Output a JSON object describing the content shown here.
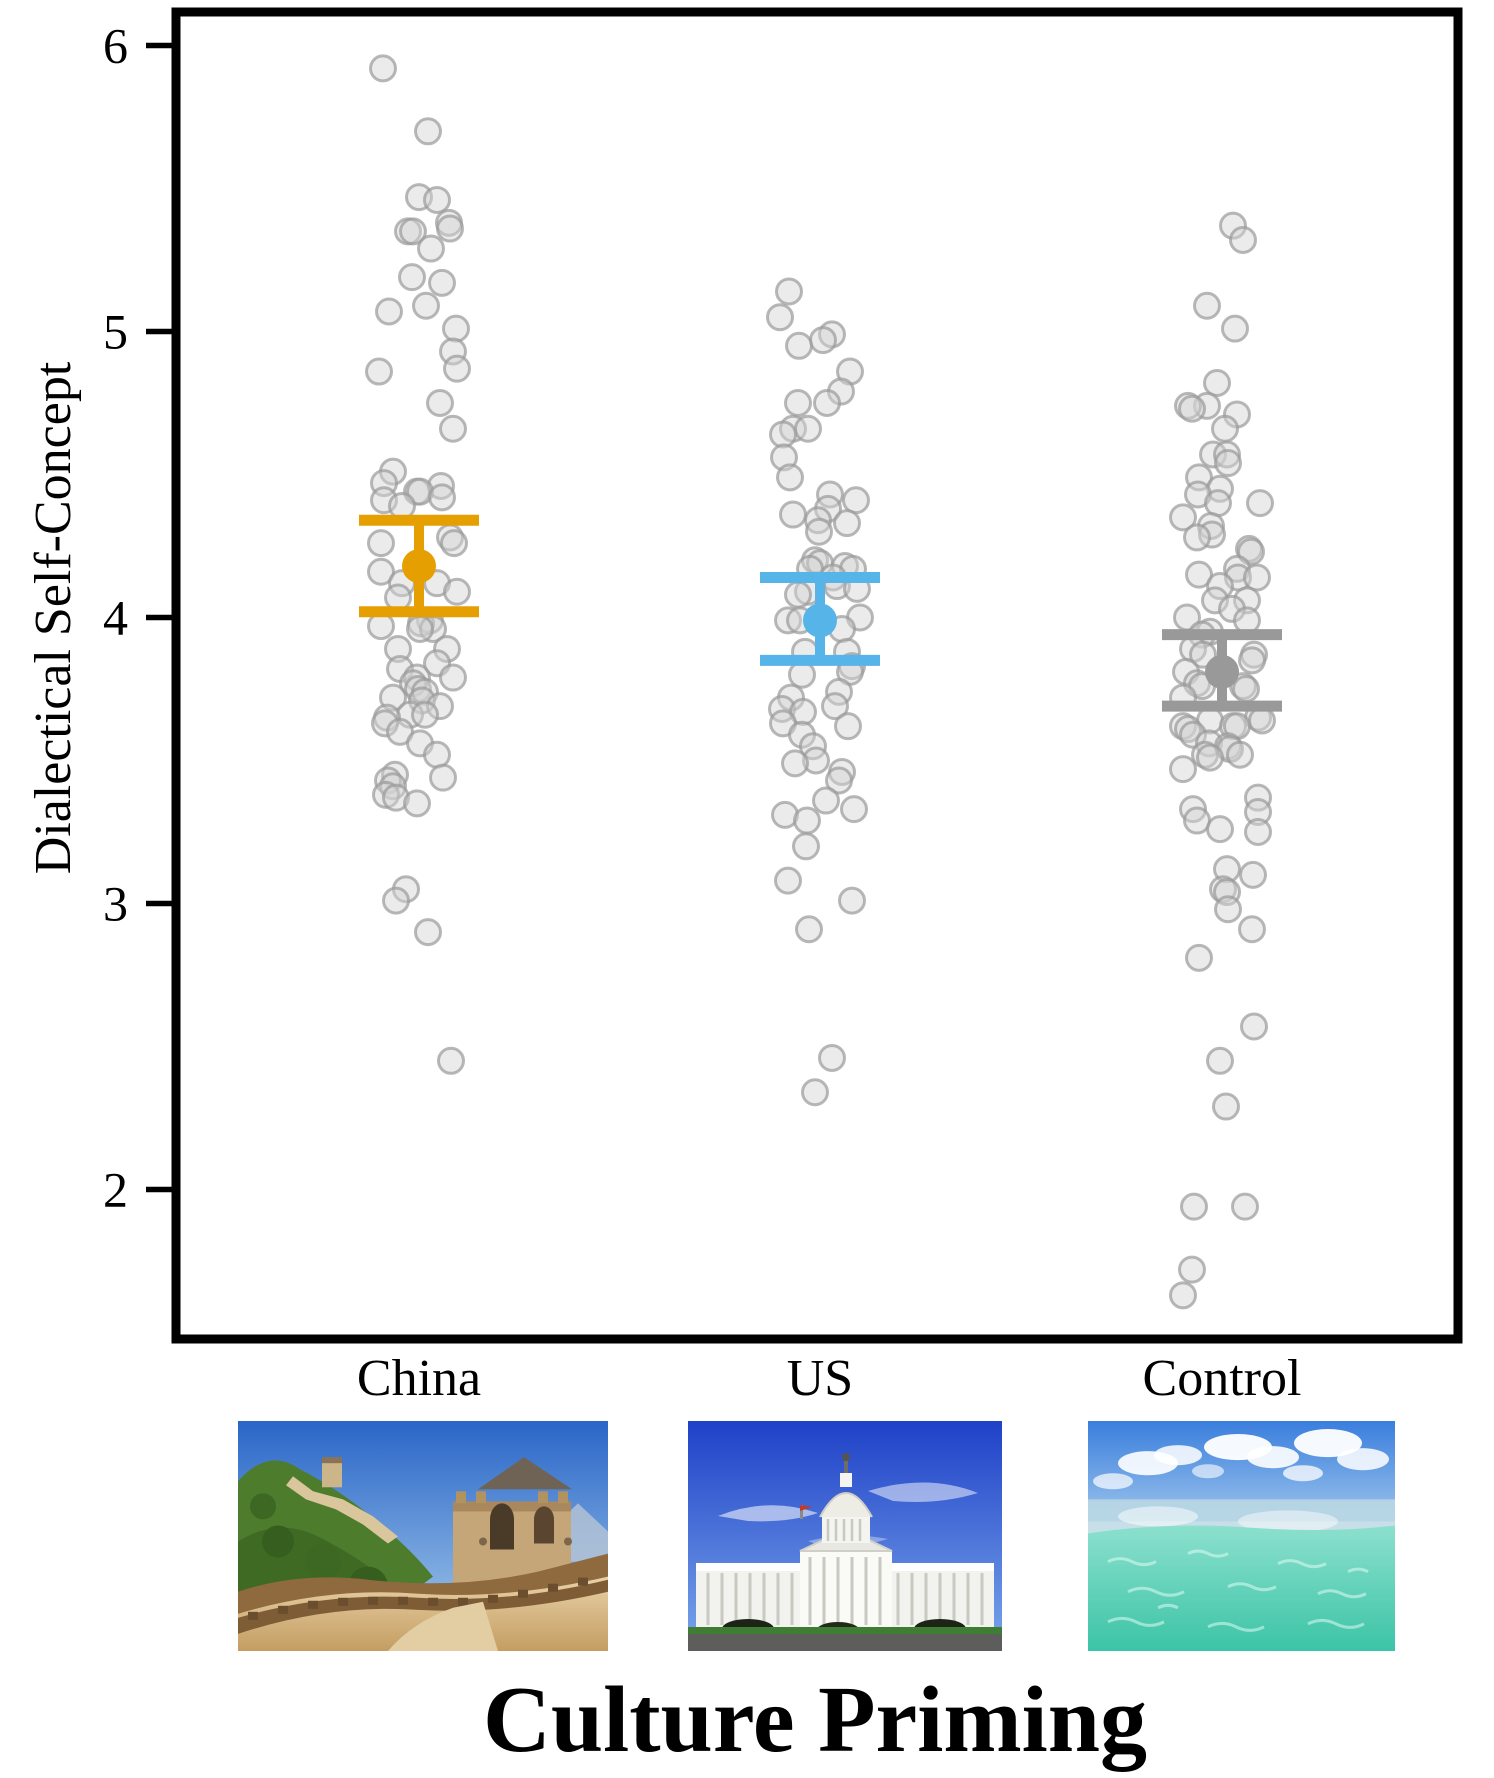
{
  "chart_data": {
    "type": "scatter",
    "subtype": "jittered-strip-with-mean-ci",
    "title": "",
    "xlabel": "Culture Priming",
    "ylabel": "Dialectical Self-Concept",
    "ylim": [
      1.45,
      6.15
    ],
    "yticks": [
      2,
      3,
      4,
      5,
      6
    ],
    "grid": false,
    "legend": null,
    "point_style": {
      "fill": "#d2d2d2",
      "fill_opacity": 0.45,
      "stroke": "#9a9a9a",
      "stroke_opacity": 0.7
    },
    "groups": [
      {
        "label": "China",
        "color": "#E69F00",
        "mean": 4.18,
        "ci_low": 4.02,
        "ci_high": 4.34,
        "image": "great-wall-of-china",
        "points": [
          [
            5.92,
            -36
          ],
          [
            5.7,
            9
          ],
          [
            5.47,
            0
          ],
          [
            5.46,
            18
          ],
          [
            5.38,
            30
          ],
          [
            5.36,
            31
          ],
          [
            5.35,
            -11
          ],
          [
            5.35,
            -6
          ],
          [
            5.29,
            12
          ],
          [
            5.19,
            -7
          ],
          [
            5.17,
            23
          ],
          [
            5.09,
            7
          ],
          [
            5.07,
            -30
          ],
          [
            5.01,
            37
          ],
          [
            4.93,
            34
          ],
          [
            4.87,
            38
          ],
          [
            4.86,
            -40
          ],
          [
            4.75,
            21
          ],
          [
            4.66,
            34
          ],
          [
            4.51,
            -26
          ],
          [
            4.47,
            -35
          ],
          [
            4.46,
            22
          ],
          [
            4.44,
            -2
          ],
          [
            4.44,
            1
          ],
          [
            4.42,
            23
          ],
          [
            4.41,
            -35
          ],
          [
            4.39,
            -17
          ],
          [
            4.28,
            31
          ],
          [
            4.26,
            -38
          ],
          [
            4.26,
            35
          ],
          [
            4.16,
            -38
          ],
          [
            4.12,
            18
          ],
          [
            4.12,
            -17
          ],
          [
            4.09,
            38
          ],
          [
            4.07,
            -21
          ],
          [
            3.99,
            11
          ],
          [
            3.98,
            2
          ],
          [
            3.97,
            -38
          ],
          [
            3.96,
            14
          ],
          [
            3.96,
            1
          ],
          [
            3.89,
            -21
          ],
          [
            3.89,
            28
          ],
          [
            3.84,
            18
          ],
          [
            3.82,
            -19
          ],
          [
            3.79,
            -2
          ],
          [
            3.79,
            34
          ],
          [
            3.77,
            -6
          ],
          [
            3.75,
            -1
          ],
          [
            3.74,
            6
          ],
          [
            3.72,
            -26
          ],
          [
            3.71,
            3
          ],
          [
            3.69,
            21
          ],
          [
            3.66,
            -9
          ],
          [
            3.66,
            6
          ],
          [
            3.65,
            -32
          ],
          [
            3.63,
            -34
          ],
          [
            3.6,
            -19
          ],
          [
            3.56,
            1
          ],
          [
            3.52,
            18
          ],
          [
            3.45,
            -24
          ],
          [
            3.44,
            24
          ],
          [
            3.43,
            -31
          ],
          [
            3.41,
            -26
          ],
          [
            3.38,
            -33
          ],
          [
            3.37,
            -23
          ],
          [
            3.35,
            -2
          ],
          [
            3.05,
            -13
          ],
          [
            3.01,
            -23
          ],
          [
            2.9,
            9
          ],
          [
            2.45,
            32
          ]
        ]
      },
      {
        "label": "US",
        "color": "#56B4E9",
        "mean": 3.99,
        "ci_low": 3.85,
        "ci_high": 4.14,
        "image": "us-capitol",
        "points": [
          [
            5.14,
            -31
          ],
          [
            5.05,
            -40
          ],
          [
            4.99,
            12
          ],
          [
            4.97,
            3
          ],
          [
            4.95,
            -21
          ],
          [
            4.86,
            30
          ],
          [
            4.79,
            21
          ],
          [
            4.75,
            -22
          ],
          [
            4.75,
            7
          ],
          [
            4.66,
            -27
          ],
          [
            4.66,
            -12
          ],
          [
            4.64,
            -37
          ],
          [
            4.56,
            -36
          ],
          [
            4.49,
            -30
          ],
          [
            4.43,
            10
          ],
          [
            4.41,
            36
          ],
          [
            4.38,
            8
          ],
          [
            4.36,
            -27
          ],
          [
            4.34,
            -2
          ],
          [
            4.33,
            27
          ],
          [
            4.3,
            -1
          ],
          [
            4.2,
            -5
          ],
          [
            4.19,
            0
          ],
          [
            4.18,
            25
          ],
          [
            4.17,
            -10
          ],
          [
            4.17,
            33
          ],
          [
            4.14,
            13
          ],
          [
            4.11,
            17
          ],
          [
            4.1,
            37
          ],
          [
            4.09,
            -12
          ],
          [
            4.08,
            -22
          ],
          [
            4.0,
            40
          ],
          [
            3.99,
            -32
          ],
          [
            3.99,
            -20
          ],
          [
            3.96,
            22
          ],
          [
            3.88,
            -15
          ],
          [
            3.88,
            27
          ],
          [
            3.83,
            32
          ],
          [
            3.81,
            30
          ],
          [
            3.8,
            -18
          ],
          [
            3.74,
            19
          ],
          [
            3.72,
            -29
          ],
          [
            3.69,
            15
          ],
          [
            3.68,
            -38
          ],
          [
            3.67,
            -17
          ],
          [
            3.63,
            -37
          ],
          [
            3.62,
            28
          ],
          [
            3.59,
            -18
          ],
          [
            3.55,
            -7
          ],
          [
            3.5,
            -4
          ],
          [
            3.49,
            -25
          ],
          [
            3.46,
            22
          ],
          [
            3.43,
            19
          ],
          [
            3.36,
            6
          ],
          [
            3.33,
            34
          ],
          [
            3.31,
            -35
          ],
          [
            3.29,
            -13
          ],
          [
            3.2,
            -14
          ],
          [
            3.08,
            -32
          ],
          [
            3.01,
            32
          ],
          [
            2.91,
            -11
          ],
          [
            2.46,
            12
          ],
          [
            2.34,
            -5
          ]
        ]
      },
      {
        "label": "Control",
        "color": "#999999",
        "mean": 3.81,
        "ci_low": 3.69,
        "ci_high": 3.94,
        "image": "ocean-water",
        "points": [
          [
            5.37,
            11
          ],
          [
            5.32,
            21
          ],
          [
            5.09,
            -15
          ],
          [
            5.01,
            13
          ],
          [
            4.82,
            -5
          ],
          [
            4.74,
            -15
          ],
          [
            4.74,
            -34
          ],
          [
            4.73,
            -30
          ],
          [
            4.71,
            15
          ],
          [
            4.66,
            3
          ],
          [
            4.57,
            -9
          ],
          [
            4.57,
            5
          ],
          [
            4.54,
            6
          ],
          [
            4.49,
            -23
          ],
          [
            4.45,
            -2
          ],
          [
            4.43,
            -24
          ],
          [
            4.4,
            -4
          ],
          [
            4.4,
            38
          ],
          [
            4.35,
            -39
          ],
          [
            4.32,
            -11
          ],
          [
            4.29,
            -10
          ],
          [
            4.28,
            -25
          ],
          [
            4.24,
            27
          ],
          [
            4.23,
            29
          ],
          [
            4.17,
            15
          ],
          [
            4.15,
            -23
          ],
          [
            4.14,
            16
          ],
          [
            4.14,
            35
          ],
          [
            4.11,
            -2
          ],
          [
            4.06,
            -7
          ],
          [
            4.06,
            25
          ],
          [
            4.03,
            10
          ],
          [
            4.0,
            -35
          ],
          [
            3.99,
            25
          ],
          [
            3.95,
            -12
          ],
          [
            3.94,
            -20
          ],
          [
            3.89,
            -29
          ],
          [
            3.87,
            -19
          ],
          [
            3.87,
            32
          ],
          [
            3.85,
            30
          ],
          [
            3.81,
            -36
          ],
          [
            3.77,
            -25
          ],
          [
            3.76,
            -20
          ],
          [
            3.76,
            21
          ],
          [
            3.75,
            24
          ],
          [
            3.72,
            -39
          ],
          [
            3.65,
            36
          ],
          [
            3.64,
            40
          ],
          [
            3.64,
            -12
          ],
          [
            3.62,
            -39
          ],
          [
            3.62,
            11
          ],
          [
            3.62,
            15
          ],
          [
            3.61,
            -34
          ],
          [
            3.59,
            -29
          ],
          [
            3.56,
            -13
          ],
          [
            3.55,
            6
          ],
          [
            3.54,
            8
          ],
          [
            3.52,
            -17
          ],
          [
            3.52,
            18
          ],
          [
            3.51,
            -12
          ],
          [
            3.47,
            -39
          ],
          [
            3.37,
            36
          ],
          [
            3.33,
            -29
          ],
          [
            3.32,
            36
          ],
          [
            3.29,
            -25
          ],
          [
            3.26,
            -2
          ],
          [
            3.25,
            36
          ],
          [
            3.12,
            5
          ],
          [
            3.1,
            31
          ],
          [
            3.05,
            1
          ],
          [
            3.04,
            5
          ],
          [
            2.98,
            6
          ],
          [
            2.91,
            30
          ],
          [
            2.81,
            -23
          ],
          [
            2.57,
            32
          ],
          [
            2.45,
            -2
          ],
          [
            2.29,
            4
          ],
          [
            1.94,
            -28
          ],
          [
            1.94,
            23
          ],
          [
            1.72,
            -30
          ],
          [
            1.63,
            -39
          ]
        ]
      }
    ]
  }
}
